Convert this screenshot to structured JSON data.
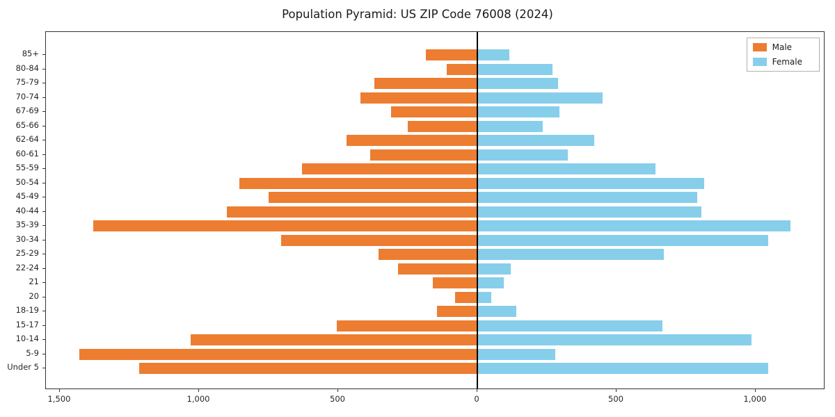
{
  "chart_data": {
    "type": "bar",
    "subtype": "population-pyramid",
    "orientation": "horizontal",
    "title": "Population Pyramid: US ZIP Code 76008 (2024)",
    "xlabel": "",
    "ylabel": "",
    "categories": [
      "85+",
      "80-84",
      "75-79",
      "70-74",
      "67-69",
      "65-66",
      "62-64",
      "60-61",
      "55-59",
      "50-54",
      "45-49",
      "40-44",
      "35-39",
      "30-34",
      "25-29",
      "22-24",
      "21",
      "20",
      "18-19",
      "15-17",
      "10-14",
      "5-9",
      "Under 5"
    ],
    "series": [
      {
        "name": "Male",
        "side": "left",
        "color": "#ed7d31",
        "values": [
          185,
          110,
          370,
          420,
          310,
          250,
          470,
          385,
          630,
          855,
          750,
          900,
          1380,
          705,
          355,
          285,
          160,
          80,
          145,
          505,
          1030,
          1430,
          1215
        ]
      },
      {
        "name": "Female",
        "side": "right",
        "color": "#87ceeb",
        "values": [
          115,
          270,
          290,
          450,
          295,
          235,
          420,
          325,
          640,
          815,
          790,
          805,
          1125,
          1045,
          670,
          120,
          95,
          50,
          140,
          665,
          985,
          280,
          1045
        ]
      }
    ],
    "xlim": [
      -1550,
      1250
    ],
    "xticks": {
      "values": [
        -1500,
        -1000,
        -500,
        0,
        500,
        1000
      ],
      "labels": [
        "1,500",
        "1,000",
        "500",
        "0",
        "500",
        "1,000"
      ]
    },
    "legend_position": "upper-right",
    "grid": false
  }
}
